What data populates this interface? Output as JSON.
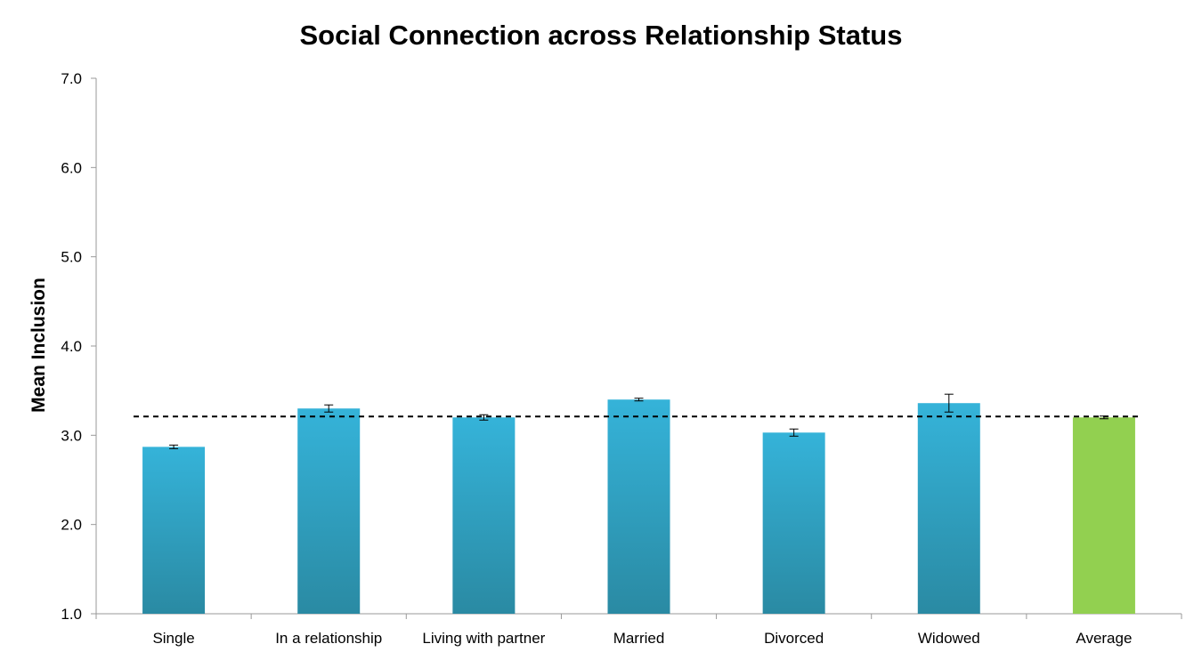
{
  "chart_data": {
    "type": "bar",
    "title": "Social Connection across Relationship Status",
    "xlabel": "",
    "ylabel": "Mean Inclusion",
    "ylim": [
      1.0,
      7.0
    ],
    "yticks": [
      "1.0",
      "2.0",
      "3.0",
      "4.0",
      "5.0",
      "6.0",
      "7.0"
    ],
    "categories": [
      "Single",
      "In a relationship",
      "Living with partner",
      "Married",
      "Divorced",
      "Widowed",
      "Average"
    ],
    "values": [
      2.87,
      3.3,
      3.2,
      3.4,
      3.03,
      3.36,
      3.2
    ],
    "errors": [
      0.02,
      0.04,
      0.03,
      0.015,
      0.04,
      0.1,
      0.015
    ],
    "reference_line": 3.21,
    "grid": false,
    "legend": "none",
    "colors": {
      "bar_top": "#35b3d9",
      "bar_bottom": "#2a8aa3",
      "highlight": "#92d050",
      "reference_line": "#000000",
      "axis": "#999999"
    }
  }
}
